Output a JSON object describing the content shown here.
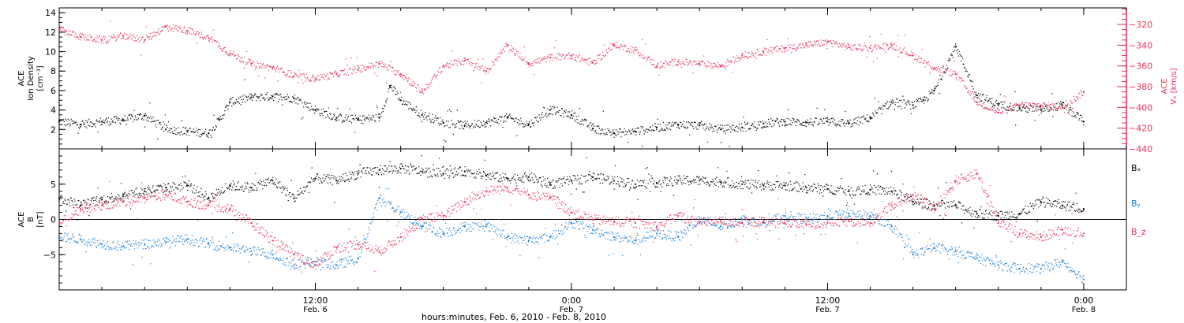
{
  "chart_data": [
    {
      "type": "scatter",
      "panel": "top",
      "left_axis": {
        "label_lines": [
          "ACE",
          "Ion Density",
          "[cm⁻³]"
        ],
        "ticks": [
          2,
          4,
          6,
          8,
          10,
          12,
          14
        ],
        "ylim": [
          0,
          14.5
        ]
      },
      "right_axis": {
        "label_lines": [
          "ACE",
          "Vₓ [km/s]"
        ],
        "ticks": [
          -320,
          -340,
          -360,
          -380,
          -400,
          -420,
          -440
        ],
        "ylim": [
          -440,
          -304
        ],
        "color": "#e8325a"
      },
      "xlim_hours": [
        0,
        50
      ],
      "series": [
        {
          "axis": "left",
          "color": "#000000",
          "x": [
            0.0,
            1.0,
            2.0,
            3.0,
            4.0,
            5.0,
            6.0,
            7.0,
            7.5,
            8.0,
            9.0,
            10.0,
            11.0,
            12.0,
            13.0,
            14.0,
            15.0,
            15.5,
            16.0,
            17.0,
            18.0,
            19.0,
            20.0,
            21.0,
            22.0,
            23.0,
            24.0,
            25.0,
            26.0,
            27.0,
            28.0,
            29.0,
            30.0,
            31.0,
            32.0,
            33.0,
            34.0,
            35.0,
            36.0,
            37.0,
            38.0,
            39.0,
            40.0,
            40.5,
            41.0,
            42.0,
            43.0,
            44.0,
            45.0,
            46.0,
            47.0,
            48.0
          ],
          "y": [
            2.8,
            2.5,
            2.8,
            3.0,
            3.4,
            2.0,
            1.8,
            1.6,
            3.0,
            4.8,
            5.3,
            5.4,
            5.2,
            4.0,
            3.2,
            3.0,
            3.2,
            6.5,
            5.0,
            3.5,
            2.7,
            2.4,
            2.7,
            3.2,
            2.5,
            4.0,
            3.5,
            2.1,
            1.6,
            1.8,
            2.2,
            2.5,
            2.4,
            2.0,
            2.2,
            2.6,
            2.8,
            2.7,
            2.8,
            2.6,
            3.2,
            4.8,
            4.5,
            5.0,
            6.0,
            10.5,
            5.5,
            4.5,
            4.2,
            4.0,
            4.5,
            2.8
          ]
        },
        {
          "axis": "right",
          "color": "#e8325a",
          "x": [
            0.0,
            1.0,
            2.0,
            3.0,
            4.0,
            5.0,
            6.0,
            7.0,
            8.0,
            9.0,
            10.0,
            11.0,
            12.0,
            13.0,
            14.0,
            15.0,
            16.0,
            17.0,
            18.0,
            19.0,
            20.0,
            21.0,
            22.0,
            23.0,
            24.0,
            25.0,
            26.0,
            27.0,
            28.0,
            29.0,
            30.0,
            31.0,
            32.0,
            33.0,
            34.0,
            35.0,
            36.0,
            37.0,
            38.0,
            39.0,
            40.0,
            41.0,
            42.0,
            43.0,
            44.0,
            45.0,
            46.0,
            47.0,
            48.0
          ],
          "y": [
            -325,
            -332,
            -335,
            -331,
            -335,
            -322,
            -326,
            -333,
            -348,
            -358,
            -362,
            -370,
            -372,
            -368,
            -363,
            -358,
            -368,
            -385,
            -360,
            -355,
            -365,
            -340,
            -358,
            -352,
            -350,
            -357,
            -340,
            -345,
            -360,
            -356,
            -358,
            -360,
            -350,
            -346,
            -343,
            -340,
            -337,
            -342,
            -343,
            -340,
            -350,
            -362,
            -368,
            -395,
            -405,
            -398,
            -398,
            -400,
            -385
          ]
        }
      ]
    },
    {
      "type": "scatter",
      "panel": "bottom",
      "left_axis": {
        "label_lines": [
          "ACE",
          "B",
          "[nT]"
        ],
        "ticks": [
          -5,
          0,
          5
        ],
        "ylim": [
          -10,
          10
        ]
      },
      "xlim_hours": [
        0,
        50
      ],
      "zero_line": true,
      "legend": {
        "position": "right",
        "entries": [
          "Bₓ",
          "Bᵧ",
          "B_z"
        ]
      },
      "series": [
        {
          "name": "Bₓ",
          "color": "#000000",
          "x": [
            0,
            1,
            2,
            3,
            4,
            5,
            6,
            7,
            8,
            9,
            10,
            11,
            12,
            13,
            14,
            15,
            16,
            17,
            18,
            19,
            20,
            21,
            22,
            23,
            24,
            25,
            26,
            27,
            28,
            29,
            30,
            31,
            32,
            33,
            34,
            35,
            36,
            37,
            38,
            39,
            40,
            41,
            42,
            43,
            44,
            45,
            46,
            47,
            48
          ],
          "y": [
            3.0,
            2.0,
            2.8,
            3.5,
            4.0,
            4.5,
            4.8,
            3.0,
            4.8,
            4.5,
            5.5,
            3.0,
            5.8,
            5.5,
            6.5,
            7.0,
            7.2,
            6.8,
            6.5,
            6.8,
            6.2,
            5.8,
            6.0,
            5.0,
            5.5,
            6.0,
            5.5,
            5.0,
            5.2,
            5.5,
            5.5,
            5.3,
            5.0,
            4.8,
            4.8,
            4.5,
            4.3,
            4.0,
            4.2,
            4.0,
            2.5,
            2.0,
            2.0,
            0.8,
            0.5,
            0.8,
            2.5,
            2.0,
            1.5
          ]
        },
        {
          "name": "Bᵧ",
          "color": "#1a7fd6",
          "x": [
            0,
            1,
            2,
            3,
            4,
            5,
            6,
            7,
            8,
            9,
            10,
            11,
            12,
            13,
            14,
            15,
            16,
            17,
            18,
            19,
            20,
            21,
            22,
            23,
            24,
            25,
            26,
            27,
            28,
            29,
            30,
            31,
            32,
            33,
            34,
            35,
            36,
            37,
            38,
            39,
            40,
            41,
            42,
            43,
            44,
            45,
            46,
            47,
            48
          ],
          "y": [
            -2.5,
            -2.8,
            -3.5,
            -3.8,
            -3.5,
            -3.2,
            -2.8,
            -3.5,
            -4.0,
            -4.5,
            -5.0,
            -6.5,
            -6.0,
            -6.5,
            -5.5,
            3.0,
            1.0,
            -1.0,
            -2.0,
            -1.0,
            -1.0,
            -2.5,
            -3.0,
            -2.5,
            -0.5,
            -1.5,
            -2.5,
            -3.0,
            -2.0,
            -2.5,
            0.0,
            -1.0,
            0.0,
            -0.5,
            0.5,
            0.0,
            0.5,
            0.8,
            0.5,
            -1.0,
            -5.0,
            -4.0,
            -4.5,
            -5.5,
            -6.5,
            -7.0,
            -7.0,
            -6.0,
            -8.5
          ]
        },
        {
          "name": "B_z",
          "color": "#e8325a",
          "x": [
            0,
            1,
            2,
            3,
            4,
            5,
            6,
            7,
            8,
            9,
            10,
            11,
            12,
            13,
            14,
            15,
            16,
            17,
            18,
            19,
            20,
            21,
            22,
            23,
            24,
            25,
            26,
            27,
            28,
            29,
            30,
            31,
            32,
            33,
            34,
            35,
            36,
            37,
            38,
            39,
            40,
            41,
            42,
            43,
            44,
            45,
            46,
            47,
            48
          ],
          "y": [
            -0.5,
            1.5,
            2.0,
            2.5,
            3.0,
            3.5,
            2.5,
            2.0,
            1.5,
            -0.5,
            -3.0,
            -5.0,
            -6.5,
            -4.0,
            -3.5,
            -4.5,
            -2.5,
            0.0,
            0.5,
            2.5,
            4.0,
            4.5,
            3.5,
            3.0,
            1.0,
            0.0,
            -0.3,
            -0.5,
            -1.0,
            0.5,
            -0.5,
            -0.3,
            -0.5,
            -0.3,
            -0.5,
            -0.7,
            -0.5,
            -0.3,
            -0.5,
            2.0,
            3.5,
            1.5,
            5.5,
            6.5,
            -0.5,
            -2.0,
            -2.5,
            -1.5,
            -2.0
          ]
        }
      ]
    }
  ],
  "x_axis": {
    "major_ticks": [
      {
        "hour": 12,
        "time": "12:00",
        "date": "Feb. 6"
      },
      {
        "hour": 24,
        "time": "0:00",
        "date": "Feb. 7"
      },
      {
        "hour": 36,
        "time": "12:00",
        "date": "Feb. 7"
      },
      {
        "hour": 48,
        "time": "0:00",
        "date": "Feb. 8"
      }
    ],
    "minor_tick_every_hours": 2,
    "label": "hours:minutes, Feb.  6, 2010 - Feb.  8, 2010"
  }
}
